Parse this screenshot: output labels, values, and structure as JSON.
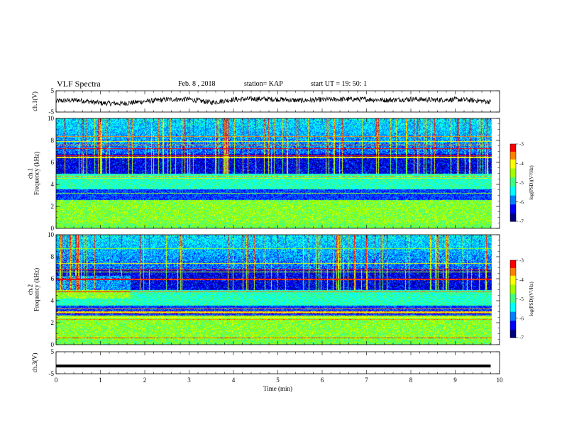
{
  "header": {
    "title": "VLF Spectra",
    "date": "Feb. 8  , 2018",
    "station": "station= KAP",
    "start": "start  UT =   19: 50: 1"
  },
  "colors": {
    "colormap": [
      "#00007f",
      "#0000ff",
      "#0080ff",
      "#00ffff",
      "#40ff80",
      "#a0ff00",
      "#ffff00",
      "#ff8000",
      "#ff0000",
      "#ffffff"
    ]
  },
  "chart_data": [
    {
      "type": "line",
      "ylabel": "ch.1(V)",
      "ylim": [
        -5,
        5
      ],
      "y_ticks": [
        "5",
        "-5"
      ],
      "x": [
        0,
        0.5,
        1,
        1.5,
        2,
        2.5,
        3,
        3.5,
        4,
        4.5,
        5,
        5.5,
        6,
        6.5,
        7,
        7.5,
        8,
        8.5,
        9,
        9.5,
        9.8
      ],
      "values": [
        0.2,
        0.6,
        -0.8,
        -1.0,
        0.0,
        0.9,
        1.0,
        -0.5,
        0.9,
        1.2,
        1.0,
        0.4,
        0.8,
        1.0,
        1.0,
        0.6,
        1.1,
        0.7,
        0.9,
        0.4,
        -0.2
      ]
    },
    {
      "type": "heatmap",
      "ylabel": "ch.1\nFrequency (kHz)",
      "ylim": [
        0,
        10
      ],
      "y_ticks": [
        "0",
        "2",
        "4",
        "6",
        "8",
        "10"
      ],
      "colorbar": {
        "label": "log(PSD)(V²/Hz)",
        "ticks": [
          "-3",
          "-4",
          "-5",
          "-6",
          "-7"
        ],
        "range": [
          -7,
          -3
        ]
      }
    },
    {
      "type": "heatmap",
      "ylabel": "ch.2\nFrequency (kHz)",
      "ylim": [
        0,
        10
      ],
      "y_ticks": [
        "0",
        "2",
        "4",
        "6",
        "8",
        "10"
      ],
      "colorbar": {
        "label": "log(PSD)(V²/Hz)",
        "ticks": [
          "-3",
          "-4",
          "-5",
          "-6",
          "-7"
        ],
        "range": [
          -7,
          -3
        ]
      }
    },
    {
      "type": "line",
      "ylabel": "ch.3(V)",
      "ylim": [
        -5,
        5
      ],
      "y_ticks": [
        "5",
        "-5"
      ],
      "x": [
        0,
        9.8
      ],
      "values": [
        -1.5,
        -1.5
      ]
    }
  ],
  "x_axis": {
    "label": "Time (min)",
    "xlim": [
      0,
      10
    ],
    "ticks": [
      "0",
      "1",
      "2",
      "3",
      "4",
      "5",
      "6",
      "7",
      "8",
      "9",
      "10"
    ]
  }
}
